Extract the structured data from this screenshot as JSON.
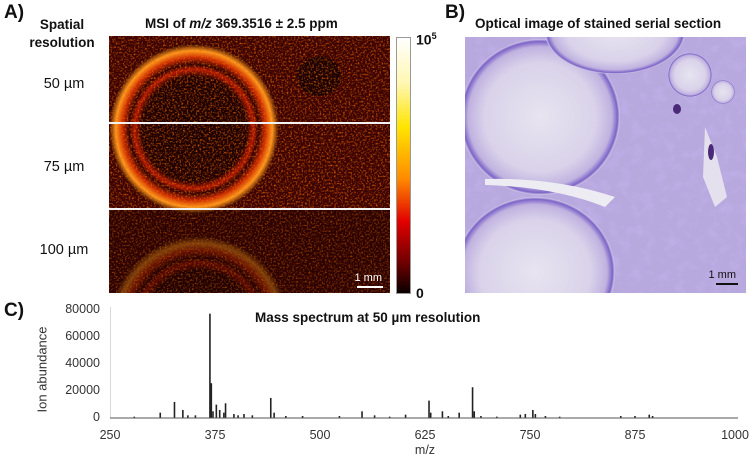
{
  "panel_a": {
    "letter": "A)",
    "row_header_line1": "Spatial",
    "row_header_line2": "resolution",
    "title_prefix": "MSI of ",
    "title_mz": "m/z",
    "title_suffix": " 369.3516 ± 2.5 ppm",
    "rows": [
      {
        "label": "50 µm"
      },
      {
        "label": "75 µm"
      },
      {
        "label": "100 µm"
      }
    ],
    "scale_bar": "1 mm",
    "colorbar": {
      "max_base": "10",
      "max_exp": "5",
      "min": "0",
      "colormap": "hot"
    }
  },
  "panel_b": {
    "letter": "B)",
    "title": "Optical image of stained serial section",
    "scale_bar": "1 mm"
  },
  "panel_c": {
    "letter": "C)",
    "title": "Mass spectrum at 50 µm resolution",
    "ylabel": "Ion abundance",
    "xlabel": "m/z",
    "yticks": [
      "80000",
      "60000",
      "40000",
      "20000",
      "0"
    ],
    "xticks": [
      "250",
      "375",
      "500",
      "625",
      "750",
      "875",
      "1000"
    ]
  },
  "chart_data": {
    "type": "bar",
    "title": "Mass spectrum at 50 µm resolution",
    "xlabel": "m/z",
    "ylabel": "Ion abundance",
    "xlim": [
      250,
      1000
    ],
    "ylim": [
      0,
      80000
    ],
    "xticks": [
      250,
      375,
      500,
      625,
      750,
      875,
      1000
    ],
    "yticks": [
      0,
      20000,
      40000,
      60000,
      80000
    ],
    "grid": false,
    "x": [
      279,
      310,
      327,
      337,
      343,
      352,
      369.35,
      371,
      373,
      377,
      381,
      386,
      388,
      398,
      403,
      410,
      420,
      442,
      446,
      460,
      480,
      524,
      551,
      566,
      584,
      603,
      631,
      633,
      647,
      654,
      667,
      683,
      685,
      693,
      712,
      740,
      746,
      755,
      758,
      770,
      787,
      860,
      877,
      894,
      898
    ],
    "values": [
      1000,
      4000,
      12000,
      6000,
      2000,
      2000,
      78000,
      26000,
      5000,
      10000,
      6000,
      4000,
      11000,
      3000,
      2000,
      3000,
      2000,
      15000,
      4000,
      1500,
      1500,
      1500,
      5000,
      2000,
      1000,
      2500,
      13000,
      4000,
      5000,
      1500,
      4000,
      23000,
      5000,
      1500,
      1000,
      2500,
      3000,
      6000,
      3000,
      1500,
      1000,
      1500,
      1500,
      2500,
      1500
    ]
  }
}
